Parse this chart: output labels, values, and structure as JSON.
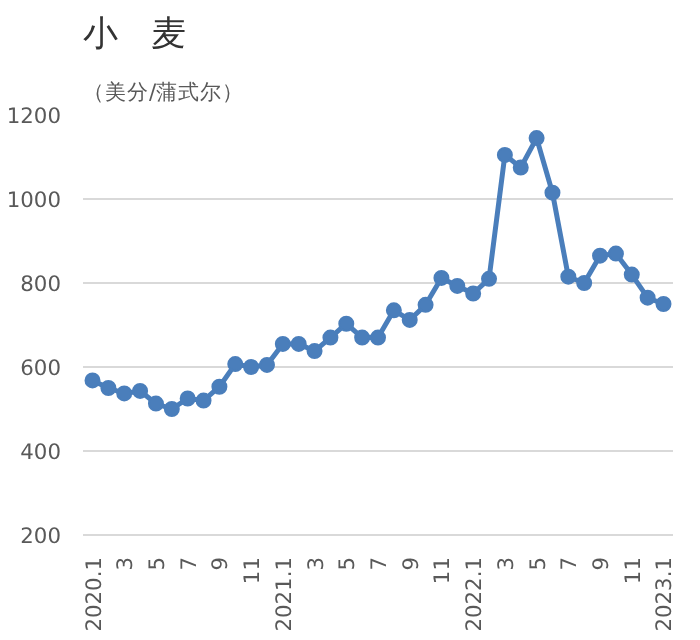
{
  "chart_data": {
    "type": "line",
    "title": "小　麦",
    "subtitle": "（美分/蒲式尔）",
    "categories": [
      "2020.1",
      null,
      "3",
      null,
      "5",
      null,
      "7",
      null,
      "9",
      null,
      "11",
      null,
      "2021.1",
      null,
      "3",
      null,
      "5",
      null,
      "7",
      null,
      "9",
      null,
      "11",
      null,
      "2022.1",
      null,
      "3",
      null,
      "5",
      null,
      "7",
      null,
      "9",
      null,
      "11",
      null,
      "2023.1"
    ],
    "series": [
      {
        "color": "#4a7ebb",
        "values": [
          568,
          550,
          537,
          543,
          513,
          500,
          525,
          520,
          553,
          607,
          600,
          605,
          655,
          655,
          638,
          670,
          703,
          670,
          670,
          735,
          712,
          748,
          812,
          793,
          775,
          810,
          1105,
          1075,
          1145,
          1015,
          815,
          800,
          865,
          870,
          820,
          765,
          750
        ]
      }
    ],
    "ylim": [
      200,
      1200
    ],
    "yticks": [
      200,
      400,
      600,
      800,
      1000,
      1200
    ],
    "grid": "y",
    "marker": "circle",
    "line_style": "solid"
  }
}
